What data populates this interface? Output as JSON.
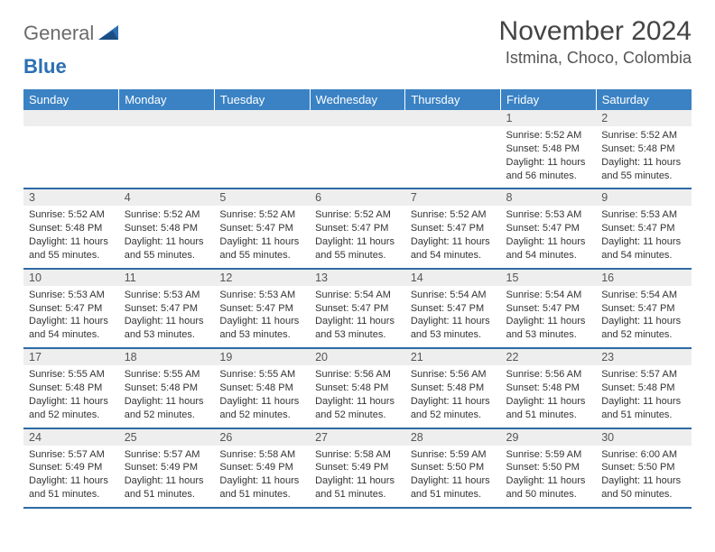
{
  "logo": {
    "text_gray": "General",
    "text_blue": "Blue"
  },
  "title": "November 2024",
  "location": "Istmina, Choco, Colombia",
  "colors": {
    "header_bg": "#3a82c4",
    "header_text": "#ffffff",
    "daynum_bg": "#eeeeee",
    "daynum_text": "#555555",
    "body_text": "#333333",
    "divider": "#2f6aa5",
    "logo_gray": "#6b6b6b",
    "logo_blue": "#2b6fb3"
  },
  "day_names": [
    "Sunday",
    "Monday",
    "Tuesday",
    "Wednesday",
    "Thursday",
    "Friday",
    "Saturday"
  ],
  "weeks": [
    [
      {
        "num": "",
        "sunrise": "",
        "sunset": "",
        "daylight": ""
      },
      {
        "num": "",
        "sunrise": "",
        "sunset": "",
        "daylight": ""
      },
      {
        "num": "",
        "sunrise": "",
        "sunset": "",
        "daylight": ""
      },
      {
        "num": "",
        "sunrise": "",
        "sunset": "",
        "daylight": ""
      },
      {
        "num": "",
        "sunrise": "",
        "sunset": "",
        "daylight": ""
      },
      {
        "num": "1",
        "sunrise": "Sunrise: 5:52 AM",
        "sunset": "Sunset: 5:48 PM",
        "daylight": "Daylight: 11 hours and 56 minutes."
      },
      {
        "num": "2",
        "sunrise": "Sunrise: 5:52 AM",
        "sunset": "Sunset: 5:48 PM",
        "daylight": "Daylight: 11 hours and 55 minutes."
      }
    ],
    [
      {
        "num": "3",
        "sunrise": "Sunrise: 5:52 AM",
        "sunset": "Sunset: 5:48 PM",
        "daylight": "Daylight: 11 hours and 55 minutes."
      },
      {
        "num": "4",
        "sunrise": "Sunrise: 5:52 AM",
        "sunset": "Sunset: 5:48 PM",
        "daylight": "Daylight: 11 hours and 55 minutes."
      },
      {
        "num": "5",
        "sunrise": "Sunrise: 5:52 AM",
        "sunset": "Sunset: 5:47 PM",
        "daylight": "Daylight: 11 hours and 55 minutes."
      },
      {
        "num": "6",
        "sunrise": "Sunrise: 5:52 AM",
        "sunset": "Sunset: 5:47 PM",
        "daylight": "Daylight: 11 hours and 55 minutes."
      },
      {
        "num": "7",
        "sunrise": "Sunrise: 5:52 AM",
        "sunset": "Sunset: 5:47 PM",
        "daylight": "Daylight: 11 hours and 54 minutes."
      },
      {
        "num": "8",
        "sunrise": "Sunrise: 5:53 AM",
        "sunset": "Sunset: 5:47 PM",
        "daylight": "Daylight: 11 hours and 54 minutes."
      },
      {
        "num": "9",
        "sunrise": "Sunrise: 5:53 AM",
        "sunset": "Sunset: 5:47 PM",
        "daylight": "Daylight: 11 hours and 54 minutes."
      }
    ],
    [
      {
        "num": "10",
        "sunrise": "Sunrise: 5:53 AM",
        "sunset": "Sunset: 5:47 PM",
        "daylight": "Daylight: 11 hours and 54 minutes."
      },
      {
        "num": "11",
        "sunrise": "Sunrise: 5:53 AM",
        "sunset": "Sunset: 5:47 PM",
        "daylight": "Daylight: 11 hours and 53 minutes."
      },
      {
        "num": "12",
        "sunrise": "Sunrise: 5:53 AM",
        "sunset": "Sunset: 5:47 PM",
        "daylight": "Daylight: 11 hours and 53 minutes."
      },
      {
        "num": "13",
        "sunrise": "Sunrise: 5:54 AM",
        "sunset": "Sunset: 5:47 PM",
        "daylight": "Daylight: 11 hours and 53 minutes."
      },
      {
        "num": "14",
        "sunrise": "Sunrise: 5:54 AM",
        "sunset": "Sunset: 5:47 PM",
        "daylight": "Daylight: 11 hours and 53 minutes."
      },
      {
        "num": "15",
        "sunrise": "Sunrise: 5:54 AM",
        "sunset": "Sunset: 5:47 PM",
        "daylight": "Daylight: 11 hours and 53 minutes."
      },
      {
        "num": "16",
        "sunrise": "Sunrise: 5:54 AM",
        "sunset": "Sunset: 5:47 PM",
        "daylight": "Daylight: 11 hours and 52 minutes."
      }
    ],
    [
      {
        "num": "17",
        "sunrise": "Sunrise: 5:55 AM",
        "sunset": "Sunset: 5:48 PM",
        "daylight": "Daylight: 11 hours and 52 minutes."
      },
      {
        "num": "18",
        "sunrise": "Sunrise: 5:55 AM",
        "sunset": "Sunset: 5:48 PM",
        "daylight": "Daylight: 11 hours and 52 minutes."
      },
      {
        "num": "19",
        "sunrise": "Sunrise: 5:55 AM",
        "sunset": "Sunset: 5:48 PM",
        "daylight": "Daylight: 11 hours and 52 minutes."
      },
      {
        "num": "20",
        "sunrise": "Sunrise: 5:56 AM",
        "sunset": "Sunset: 5:48 PM",
        "daylight": "Daylight: 11 hours and 52 minutes."
      },
      {
        "num": "21",
        "sunrise": "Sunrise: 5:56 AM",
        "sunset": "Sunset: 5:48 PM",
        "daylight": "Daylight: 11 hours and 52 minutes."
      },
      {
        "num": "22",
        "sunrise": "Sunrise: 5:56 AM",
        "sunset": "Sunset: 5:48 PM",
        "daylight": "Daylight: 11 hours and 51 minutes."
      },
      {
        "num": "23",
        "sunrise": "Sunrise: 5:57 AM",
        "sunset": "Sunset: 5:48 PM",
        "daylight": "Daylight: 11 hours and 51 minutes."
      }
    ],
    [
      {
        "num": "24",
        "sunrise": "Sunrise: 5:57 AM",
        "sunset": "Sunset: 5:49 PM",
        "daylight": "Daylight: 11 hours and 51 minutes."
      },
      {
        "num": "25",
        "sunrise": "Sunrise: 5:57 AM",
        "sunset": "Sunset: 5:49 PM",
        "daylight": "Daylight: 11 hours and 51 minutes."
      },
      {
        "num": "26",
        "sunrise": "Sunrise: 5:58 AM",
        "sunset": "Sunset: 5:49 PM",
        "daylight": "Daylight: 11 hours and 51 minutes."
      },
      {
        "num": "27",
        "sunrise": "Sunrise: 5:58 AM",
        "sunset": "Sunset: 5:49 PM",
        "daylight": "Daylight: 11 hours and 51 minutes."
      },
      {
        "num": "28",
        "sunrise": "Sunrise: 5:59 AM",
        "sunset": "Sunset: 5:50 PM",
        "daylight": "Daylight: 11 hours and 51 minutes."
      },
      {
        "num": "29",
        "sunrise": "Sunrise: 5:59 AM",
        "sunset": "Sunset: 5:50 PM",
        "daylight": "Daylight: 11 hours and 50 minutes."
      },
      {
        "num": "30",
        "sunrise": "Sunrise: 6:00 AM",
        "sunset": "Sunset: 5:50 PM",
        "daylight": "Daylight: 11 hours and 50 minutes."
      }
    ]
  ]
}
